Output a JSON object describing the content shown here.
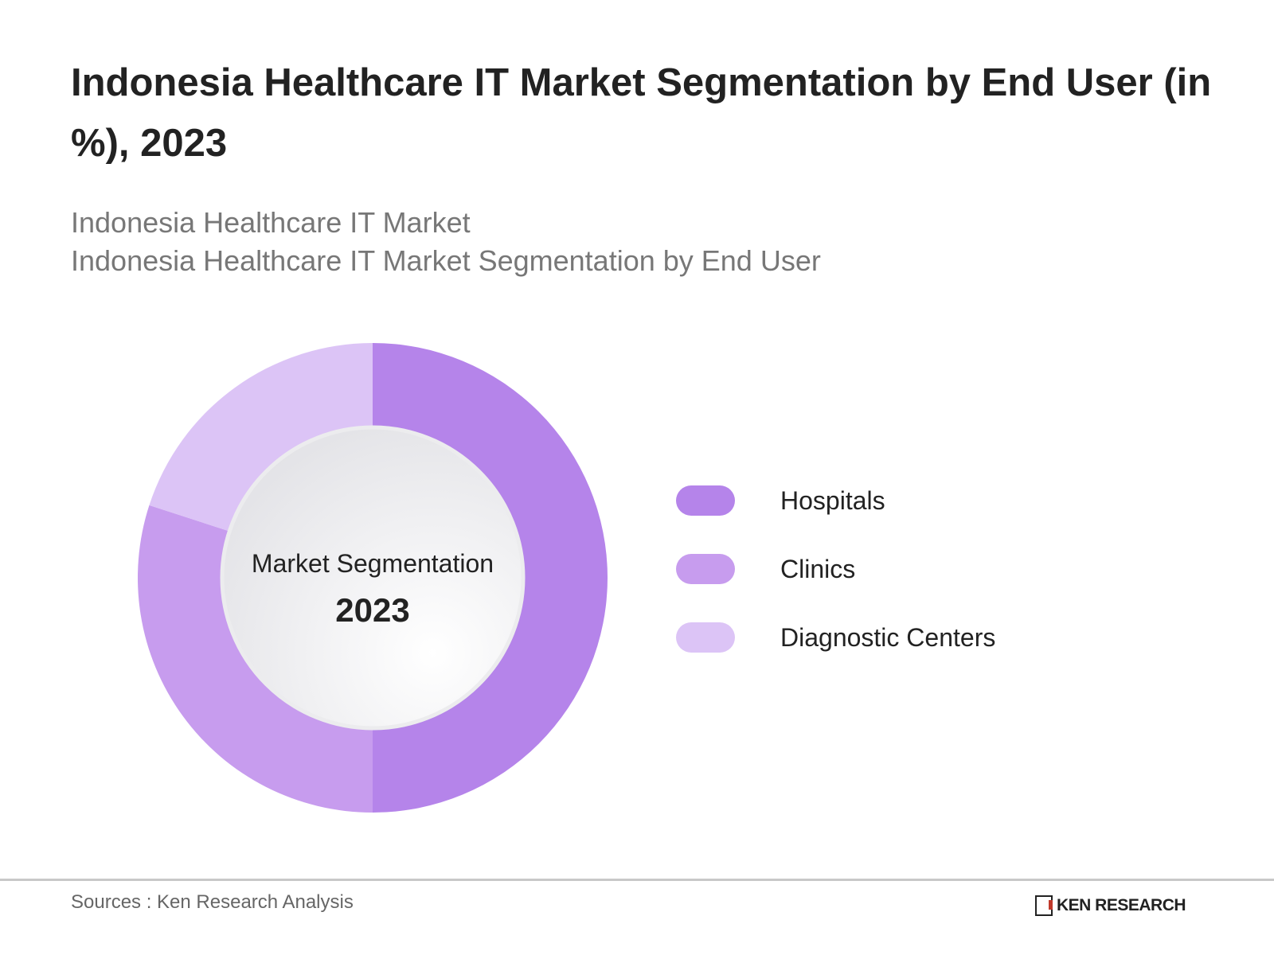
{
  "chart_data": {
    "type": "pie",
    "title": "Indonesia Healthcare IT Market Segmentation by End User (in %), 2023",
    "subtitle_lines": [
      "Indonesia Healthcare IT Market",
      "Indonesia Healthcare IT Market Segmentation by End User"
    ],
    "center_label": "Market Segmentation",
    "center_value": "2023",
    "legend_position": "right",
    "categories": [
      "Hospitals",
      "Clinics",
      "Diagnostic Centers"
    ],
    "values": [
      50,
      30,
      20
    ],
    "colors": [
      "#b584ea",
      "#c79cee",
      "#dcc4f6"
    ]
  },
  "footer": {
    "source": "Sources : Ken Research Analysis",
    "logo_text": "KEN RESEARCH"
  }
}
